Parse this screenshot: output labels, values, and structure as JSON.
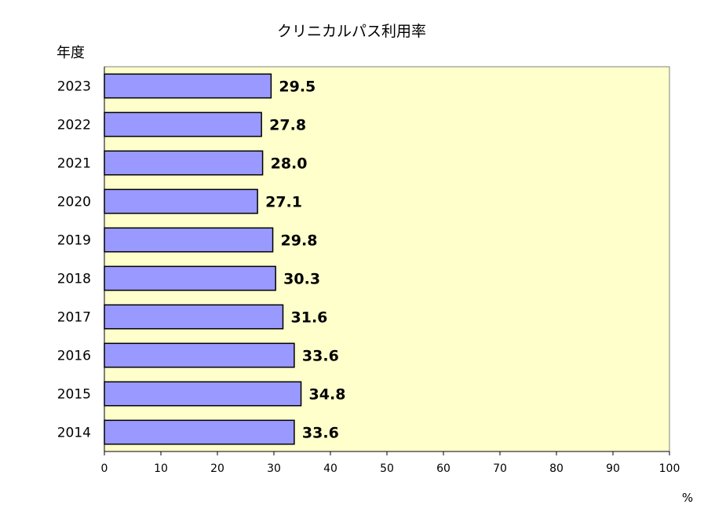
{
  "chart_data": {
    "type": "bar",
    "orientation": "horizontal",
    "title": "クリニカルパス利用率",
    "ylabel": "年度",
    "xlabel": "",
    "x_unit": "%",
    "categories": [
      "2023",
      "2022",
      "2021",
      "2020",
      "2019",
      "2018",
      "2017",
      "2016",
      "2015",
      "2014"
    ],
    "values": [
      29.5,
      27.8,
      28.0,
      27.1,
      29.8,
      30.3,
      31.6,
      33.6,
      34.8,
      33.6
    ],
    "value_labels": [
      "29.5",
      "27.8",
      "28.0",
      "27.1",
      "29.8",
      "30.3",
      "31.6",
      "33.6",
      "34.8",
      "33.6"
    ],
    "xlim": [
      0,
      100
    ],
    "xticks": [
      "0",
      "10",
      "20",
      "30",
      "40",
      "50",
      "60",
      "70",
      "80",
      "90",
      "100"
    ],
    "grid": false,
    "legend": "none",
    "colors": {
      "bar": "#9999ff",
      "bar_edge": "#000000",
      "plot_background": "#ffffcc"
    }
  }
}
